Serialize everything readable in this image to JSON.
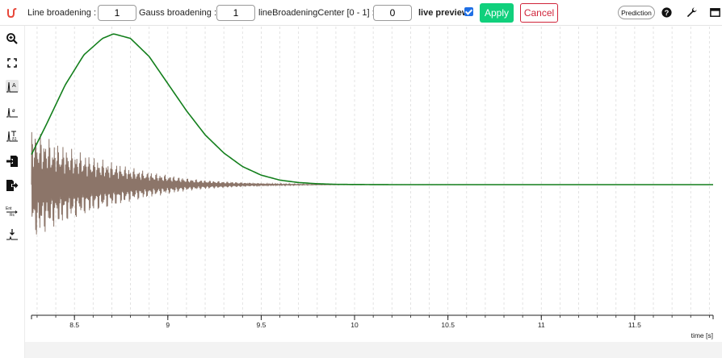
{
  "toolbar": {
    "line_broadening_label": "Line broadening :",
    "line_broadening_value": "1",
    "gauss_broadening_label": "Gauss broadening :",
    "gauss_broadening_value": "1",
    "center_label": "lineBroadeningCenter [0 - 1] :",
    "center_value": "0",
    "live_preview_label": "live preview",
    "live_preview_checked": true,
    "apply_label": "Apply",
    "cancel_label": "Cancel",
    "prediction_label": "Prediction"
  },
  "icons": {
    "logo": "nmrium-logo-icon",
    "help": "help-circle-icon",
    "settings": "wrench-icon",
    "window": "window-icon"
  },
  "sidebar": {
    "tools": [
      {
        "name": "zoom-in-icon"
      },
      {
        "name": "full-screen-icon"
      },
      {
        "name": "peak-picking-icon"
      },
      {
        "name": "integral-icon"
      },
      {
        "name": "ranges-icon"
      },
      {
        "name": "import-icon"
      },
      {
        "name": "export-icon"
      },
      {
        "name": "apodization-icon"
      },
      {
        "name": "zero-filling-icon"
      }
    ]
  },
  "colors": {
    "fid": "#8c7569",
    "window_function": "#137f1c",
    "apply": "#10d07c",
    "cancel": "#d0243a"
  },
  "chart_data": {
    "type": "line",
    "xlabel": "time [s]",
    "xlim": [
      8.27,
      11.92
    ],
    "xticks": [
      "8.5",
      "9",
      "9.5",
      "10",
      "10.5",
      "11",
      "11.5"
    ],
    "xtick_values": [
      8.5,
      9,
      9.5,
      10,
      10.5,
      11,
      11.5
    ],
    "grid": true,
    "series": [
      {
        "kind": "window-function",
        "x": [
          8.27,
          8.35,
          8.45,
          8.55,
          8.65,
          8.71,
          8.8,
          8.9,
          9.0,
          9.1,
          9.2,
          9.3,
          9.4,
          9.5,
          9.6,
          9.7,
          9.8,
          9.9,
          10.0,
          10.2,
          10.5,
          11.0,
          11.5,
          11.92
        ],
        "y": [
          0.2,
          0.4,
          0.66,
          0.86,
          0.97,
          1.0,
          0.97,
          0.85,
          0.67,
          0.49,
          0.33,
          0.21,
          0.12,
          0.063,
          0.03,
          0.014,
          0.006,
          0.002,
          0.001,
          0.0,
          0.0,
          0.0,
          0.0,
          0.0
        ]
      },
      {
        "kind": "fid",
        "x": [
          8.27,
          8.4,
          8.5,
          8.6,
          8.7,
          8.8,
          8.9,
          9.0,
          9.1,
          9.2,
          9.3,
          9.4,
          9.5,
          9.6,
          9.7,
          9.8,
          10.0,
          10.2,
          11.92
        ],
        "envelope": [
          0.88,
          0.66,
          0.54,
          0.43,
          0.35,
          0.27,
          0.2,
          0.15,
          0.1,
          0.07,
          0.05,
          0.035,
          0.02,
          0.012,
          0.008,
          0.004,
          0.002,
          0.001,
          0.0
        ]
      }
    ]
  }
}
